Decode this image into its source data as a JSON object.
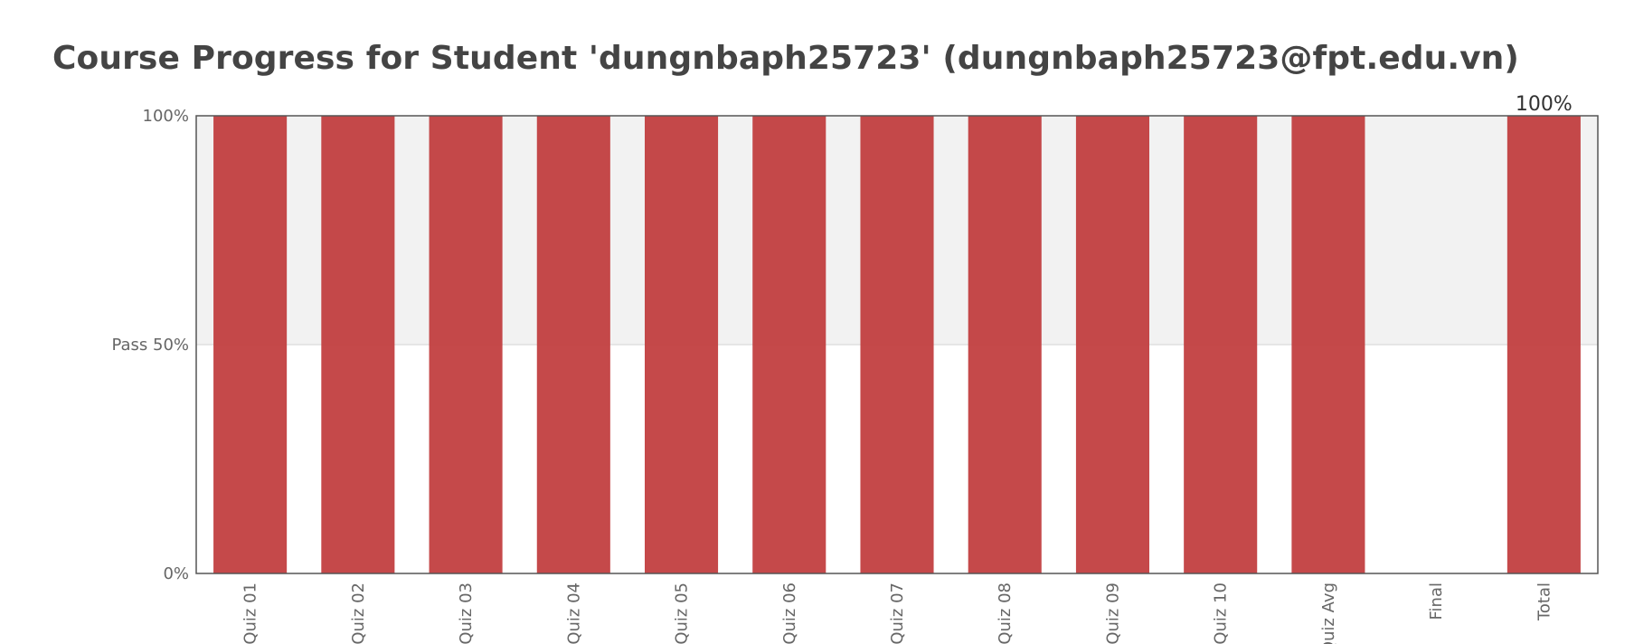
{
  "title": "Course Progress for Student 'dungnbaph25723' (dungnbaph25723@fpt.edu.vn)",
  "chart_data": {
    "type": "bar",
    "title": "Course Progress for Student 'dungnbaph25723' (dungnbaph25723@fpt.edu.vn)",
    "categories": [
      "Quiz 01",
      "Quiz 02",
      "Quiz 03",
      "Quiz 04",
      "Quiz 05",
      "Quiz 06",
      "Quiz 07",
      "Quiz 08",
      "Quiz 09",
      "Quiz 10",
      "Quiz Avg",
      "Final",
      "Total"
    ],
    "values": [
      100,
      100,
      100,
      100,
      100,
      100,
      100,
      100,
      100,
      100,
      100,
      0,
      100
    ],
    "ylim": [
      0,
      100
    ],
    "yticks": [
      {
        "value": 0,
        "label": "0%"
      },
      {
        "value": 50,
        "label": "Pass 50%"
      },
      {
        "value": 100,
        "label": "100%"
      }
    ],
    "pass_threshold": 50,
    "data_labels": [
      {
        "category": "Total",
        "label": "100%"
      }
    ],
    "colors": {
      "bar": "#c0393b",
      "pass_band": "#f2f2f2",
      "frame": "#555555"
    }
  }
}
